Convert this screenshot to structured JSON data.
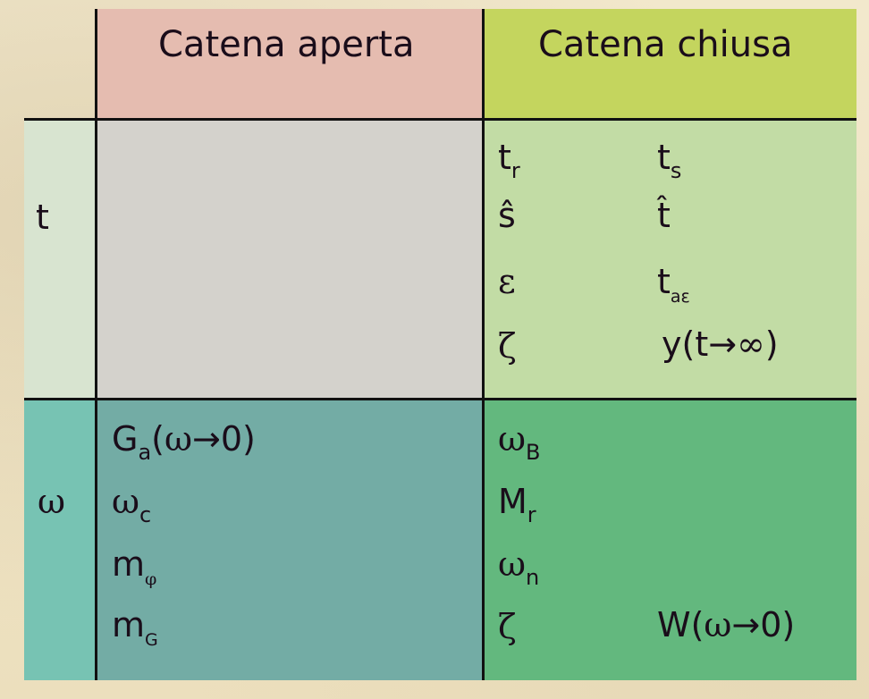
{
  "header": {
    "open_chain": "Catena aperta",
    "closed_chain": "Catena chiusa"
  },
  "rows": {
    "time": {
      "label": "t",
      "closed": {
        "tr": {
          "base": "t",
          "sub": "r"
        },
        "ts": {
          "base": "t",
          "sub": "s"
        },
        "s_hat": "ŝ",
        "t_hat": "t̂",
        "epsilon": "ε",
        "t_ae": {
          "base": "t",
          "sub": "aε"
        },
        "zeta": "ζ",
        "y_inf": {
          "pre": "y(t",
          "arrow": "→",
          "inf": "∞",
          "post": ")"
        }
      }
    },
    "frequency": {
      "label": "ω",
      "open": {
        "Ga": {
          "base": "G",
          "sub": "a",
          "paren_open": "(",
          "omega": "ω",
          "arrow": "→",
          "zero": "0)"
        },
        "wc": {
          "base": "ω",
          "sub": "c"
        },
        "mphi": {
          "base": "m",
          "sub": "φ"
        },
        "mG": {
          "base": "m",
          "sub": "G"
        }
      },
      "closed": {
        "wB": {
          "base": "ω",
          "sub": "B"
        },
        "Mr": {
          "base": "M",
          "sub": "r"
        },
        "wn": {
          "base": "ω",
          "sub": "n"
        },
        "zeta": "ζ",
        "W0": {
          "pre": "W(",
          "omega": "ω",
          "arrow": "→",
          "post": "0)"
        }
      }
    }
  }
}
